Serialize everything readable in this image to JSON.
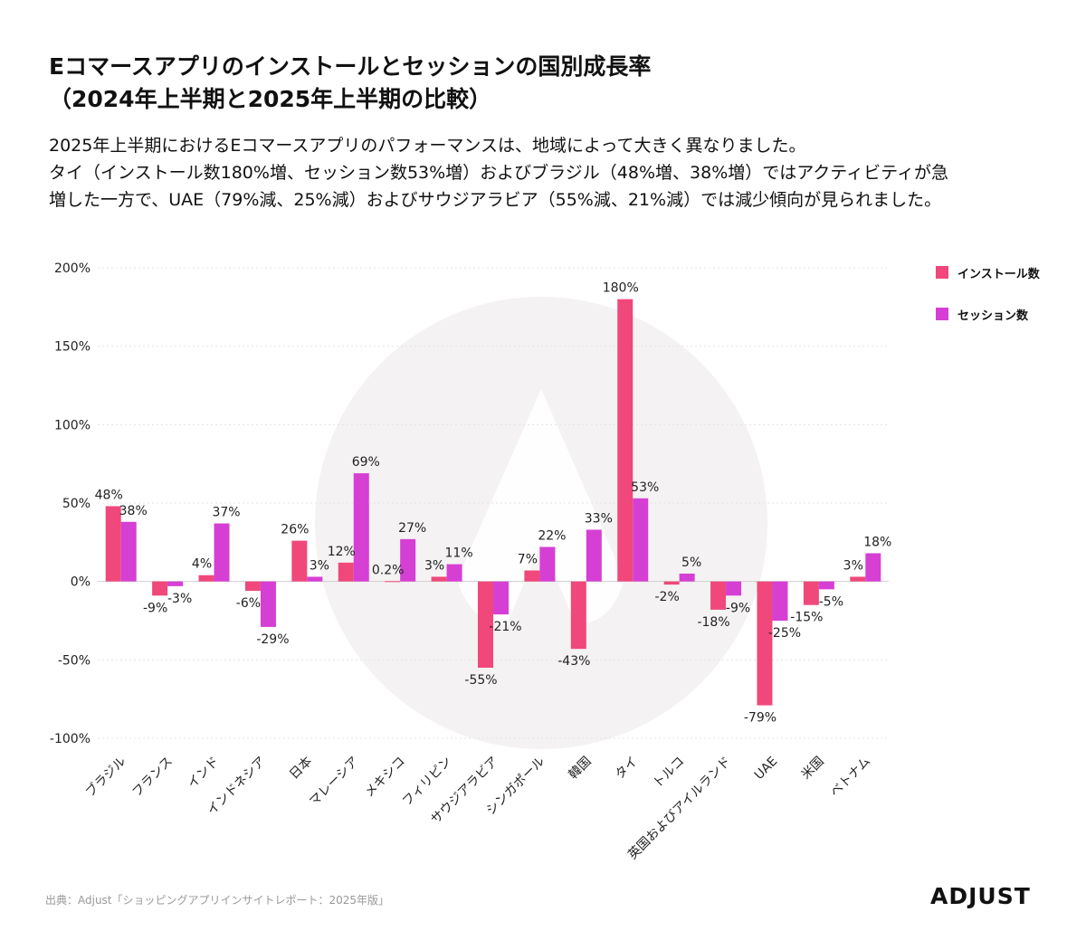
{
  "header": {
    "title_line1": "Eコマースアプリのインストールとセッションの国別成長率",
    "title_line2": "（2024年上半期と2025年上半期の比較）",
    "desc_line1": "2025年上半期におけるEコマースアプリのパフォーマンスは、地域によって大きく異なりました。",
    "desc_line2": "タイ（インストール数180%増、セッション数53%増）およびブラジル（48%増、38%増）ではアクティビティが急",
    "desc_line3": "増した一方で、UAE（79%減、25%減）およびサウジアラビア（55%減、21%減）では減少傾向が見られました。"
  },
  "footer": {
    "source": "出典：Adjust「ショッピングアプリインサイトレポート：2025年版」",
    "logo_text": "ADJUST"
  },
  "colors": {
    "install": "#f0487a",
    "session": "#d63fd4",
    "watermark": "#f4f2f2"
  },
  "chart_data": {
    "type": "bar",
    "categories": [
      "ブラジル",
      "フランス",
      "インド",
      "インドネシア",
      "日本",
      "マレーシア",
      "メキシコ",
      "フィリピン",
      "サウジアラビア",
      "シンガポール",
      "韓国",
      "タイ",
      "トルコ",
      "英国およびアイルランド",
      "UAE",
      "米国",
      "ベトナム"
    ],
    "series": [
      {
        "name": "インストール数",
        "values": [
          48,
          -9,
          4,
          -6,
          26,
          12,
          0.2,
          3,
          -55,
          7,
          -43,
          180,
          -2,
          -18,
          -79,
          -15,
          3
        ],
        "labels": [
          "48%",
          "-9%",
          "4%",
          "-6%",
          "26%",
          "12%",
          "0.2%",
          "3%",
          "-55%",
          "7%",
          "-43%",
          "180%",
          "-2%",
          "-18%",
          "-79%",
          "-15%",
          "3%"
        ]
      },
      {
        "name": "セッション数",
        "values": [
          38,
          -3,
          37,
          -29,
          3,
          69,
          27,
          11,
          -21,
          22,
          33,
          53,
          5,
          -9,
          -25,
          -5,
          18
        ],
        "labels": [
          "38%",
          "-3%",
          "37%",
          "-29%",
          "3%",
          "69%",
          "27%",
          "11%",
          "-21%",
          "22%",
          "33%",
          "53%",
          "5%",
          "-9%",
          "-25%",
          "-5%",
          "18%"
        ]
      }
    ],
    "y_ticks": [
      200,
      150,
      100,
      50,
      0,
      -50,
      -100
    ],
    "y_tick_labels": [
      "200%",
      "150%",
      "100%",
      "50%",
      "0%",
      "-50%",
      "-100%"
    ],
    "ylim": [
      -100,
      200
    ],
    "grid": true,
    "legend": "top-right"
  }
}
